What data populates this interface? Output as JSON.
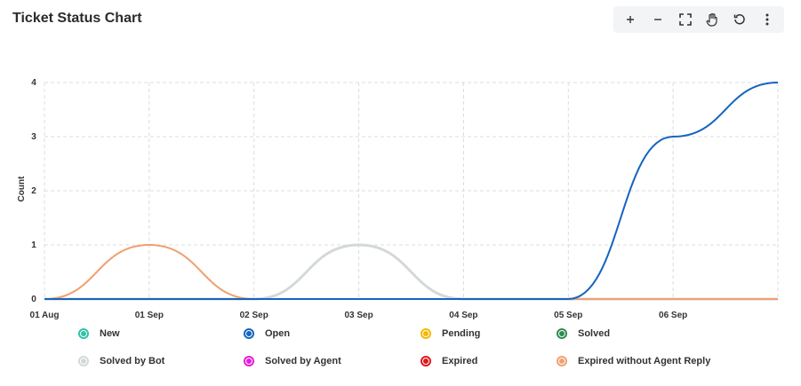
{
  "title": "Ticket Status Chart",
  "toolbar": {
    "zoom_in": "+",
    "zoom_out": "−"
  },
  "chart_data": {
    "type": "line",
    "title": "Ticket Status Chart",
    "xlabel": "",
    "ylabel": "Count",
    "ylim": [
      0,
      4
    ],
    "yticks": [
      "0",
      "1",
      "2",
      "3",
      "4"
    ],
    "categories": [
      "01 Aug",
      "01 Sep",
      "02 Sep",
      "03 Sep",
      "04 Sep",
      "05 Sep",
      "06 Sep",
      ""
    ],
    "grid": true,
    "legend_position": "bottom",
    "series": [
      {
        "name": "New",
        "color": "#2ec4a6",
        "values": [
          0,
          0,
          0,
          0,
          0,
          0,
          0,
          0
        ]
      },
      {
        "name": "Open",
        "color": "#1565c0",
        "values": [
          0,
          0,
          0,
          0,
          0,
          0,
          3,
          4
        ]
      },
      {
        "name": "Pending",
        "color": "#f5b800",
        "values": [
          0,
          0,
          0,
          0,
          0,
          0,
          0,
          0
        ]
      },
      {
        "name": "Solved",
        "color": "#2e8b4f",
        "values": [
          0,
          0,
          0,
          0,
          0,
          0,
          0,
          0
        ]
      },
      {
        "name": "Solved by Bot",
        "color": "#d3d9d6",
        "values": [
          0,
          0,
          0,
          1,
          0,
          0,
          0,
          0
        ]
      },
      {
        "name": "Solved by Agent",
        "color": "#e81bd5",
        "values": [
          0,
          0,
          0,
          0,
          0,
          0,
          0,
          0
        ]
      },
      {
        "name": "Expired",
        "color": "#e0171f",
        "values": [
          0,
          0,
          0,
          0,
          0,
          0,
          0,
          0
        ]
      },
      {
        "name": "Expired without Agent Reply",
        "color": "#f0a070",
        "values": [
          0,
          1,
          0,
          0,
          0,
          0,
          0,
          0
        ]
      }
    ]
  }
}
